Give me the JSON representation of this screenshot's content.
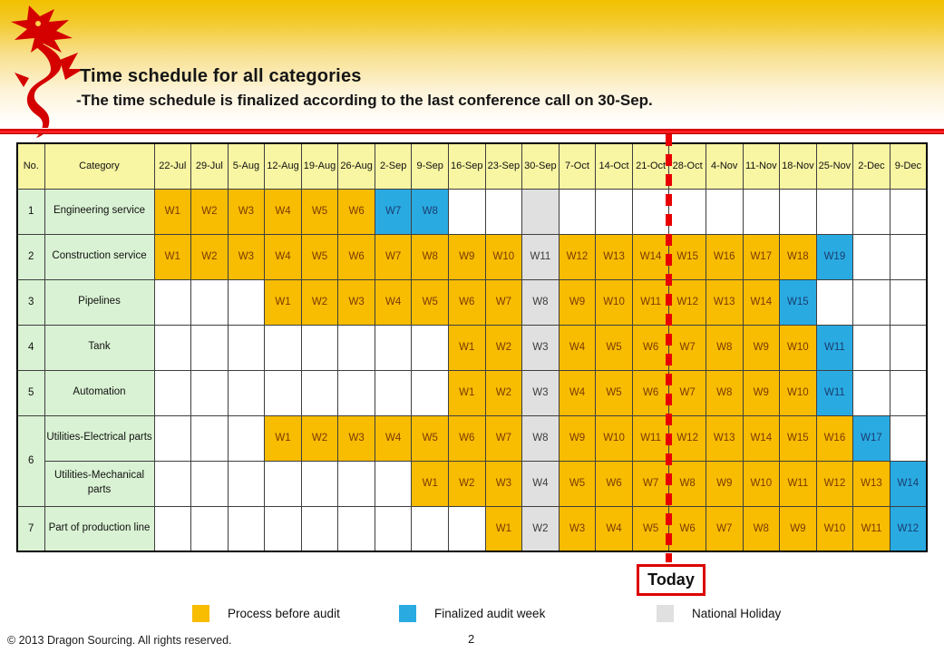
{
  "header": {
    "title": "Time schedule for all categories",
    "subtitle": "-The time schedule is finalized according to the last conference call on 30-Sep."
  },
  "table": {
    "corner_headers": [
      "No.",
      "Category"
    ],
    "date_headers": [
      "22-Jul",
      "29-Jul",
      "5-Aug",
      "12-Aug",
      "19-Aug",
      "26-Aug",
      "2-Sep",
      "9-Sep",
      "16-Sep",
      "23-Sep",
      "30-Sep",
      "7-Oct",
      "14-Oct",
      "21-Oct",
      "28-Oct",
      "4-Nov",
      "11-Nov",
      "18-Nov",
      "25-Nov",
      "2-Dec",
      "9-Dec"
    ],
    "rows": [
      {
        "no": "1",
        "rowspan": 1,
        "category": "Engineering service",
        "cells": [
          {
            "t": "W1",
            "s": "o"
          },
          {
            "t": "W2",
            "s": "o"
          },
          {
            "t": "W3",
            "s": "o"
          },
          {
            "t": "W4",
            "s": "o"
          },
          {
            "t": "W5",
            "s": "o"
          },
          {
            "t": "W6",
            "s": "o"
          },
          {
            "t": "W7",
            "s": "b"
          },
          {
            "t": "W8",
            "s": "b"
          },
          {
            "t": "",
            "s": "e"
          },
          {
            "t": "",
            "s": "e"
          },
          {
            "t": "",
            "s": "g"
          },
          {
            "t": "",
            "s": "e"
          },
          {
            "t": "",
            "s": "e"
          },
          {
            "t": "",
            "s": "e"
          },
          {
            "t": "",
            "s": "e"
          },
          {
            "t": "",
            "s": "e"
          },
          {
            "t": "",
            "s": "e"
          },
          {
            "t": "",
            "s": "e"
          },
          {
            "t": "",
            "s": "e"
          },
          {
            "t": "",
            "s": "e"
          },
          {
            "t": "",
            "s": "e"
          }
        ]
      },
      {
        "no": "2",
        "rowspan": 1,
        "category": "Construction service",
        "cells": [
          {
            "t": "W1",
            "s": "o"
          },
          {
            "t": "W2",
            "s": "o"
          },
          {
            "t": "W3",
            "s": "o"
          },
          {
            "t": "W4",
            "s": "o"
          },
          {
            "t": "W5",
            "s": "o"
          },
          {
            "t": "W6",
            "s": "o"
          },
          {
            "t": "W7",
            "s": "o"
          },
          {
            "t": "W8",
            "s": "o"
          },
          {
            "t": "W9",
            "s": "o"
          },
          {
            "t": "W10",
            "s": "o"
          },
          {
            "t": "W11",
            "s": "g"
          },
          {
            "t": "W12",
            "s": "o"
          },
          {
            "t": "W13",
            "s": "o"
          },
          {
            "t": "W14",
            "s": "o"
          },
          {
            "t": "W15",
            "s": "o"
          },
          {
            "t": "W16",
            "s": "o"
          },
          {
            "t": "W17",
            "s": "o"
          },
          {
            "t": "W18",
            "s": "o"
          },
          {
            "t": "W19",
            "s": "b"
          },
          {
            "t": "",
            "s": "e"
          },
          {
            "t": "",
            "s": "e"
          }
        ]
      },
      {
        "no": "3",
        "rowspan": 1,
        "category": "Pipelines",
        "cells": [
          {
            "t": "",
            "s": "e"
          },
          {
            "t": "",
            "s": "e"
          },
          {
            "t": "",
            "s": "e"
          },
          {
            "t": "W1",
            "s": "o"
          },
          {
            "t": "W2",
            "s": "o"
          },
          {
            "t": "W3",
            "s": "o"
          },
          {
            "t": "W4",
            "s": "o"
          },
          {
            "t": "W5",
            "s": "o"
          },
          {
            "t": "W6",
            "s": "o"
          },
          {
            "t": "W7",
            "s": "o"
          },
          {
            "t": "W8",
            "s": "g"
          },
          {
            "t": "W9",
            "s": "o"
          },
          {
            "t": "W10",
            "s": "o"
          },
          {
            "t": "W11",
            "s": "o"
          },
          {
            "t": "W12",
            "s": "o"
          },
          {
            "t": "W13",
            "s": "o"
          },
          {
            "t": "W14",
            "s": "o"
          },
          {
            "t": "W15",
            "s": "b"
          },
          {
            "t": "",
            "s": "e"
          },
          {
            "t": "",
            "s": "e"
          },
          {
            "t": "",
            "s": "e"
          }
        ]
      },
      {
        "no": "4",
        "rowspan": 1,
        "category": "Tank",
        "cells": [
          {
            "t": "",
            "s": "e"
          },
          {
            "t": "",
            "s": "e"
          },
          {
            "t": "",
            "s": "e"
          },
          {
            "t": "",
            "s": "e"
          },
          {
            "t": "",
            "s": "e"
          },
          {
            "t": "",
            "s": "e"
          },
          {
            "t": "",
            "s": "e"
          },
          {
            "t": "",
            "s": "e"
          },
          {
            "t": "W1",
            "s": "o"
          },
          {
            "t": "W2",
            "s": "o"
          },
          {
            "t": "W3",
            "s": "g"
          },
          {
            "t": "W4",
            "s": "o"
          },
          {
            "t": "W5",
            "s": "o"
          },
          {
            "t": "W6",
            "s": "o"
          },
          {
            "t": "W7",
            "s": "o"
          },
          {
            "t": "W8",
            "s": "o"
          },
          {
            "t": "W9",
            "s": "o"
          },
          {
            "t": "W10",
            "s": "o"
          },
          {
            "t": "W11",
            "s": "b"
          },
          {
            "t": "",
            "s": "e"
          },
          {
            "t": "",
            "s": "e"
          }
        ]
      },
      {
        "no": "5",
        "rowspan": 1,
        "category": "Automation",
        "cells": [
          {
            "t": "",
            "s": "e"
          },
          {
            "t": "",
            "s": "e"
          },
          {
            "t": "",
            "s": "e"
          },
          {
            "t": "",
            "s": "e"
          },
          {
            "t": "",
            "s": "e"
          },
          {
            "t": "",
            "s": "e"
          },
          {
            "t": "",
            "s": "e"
          },
          {
            "t": "",
            "s": "e"
          },
          {
            "t": "W1",
            "s": "o"
          },
          {
            "t": "W2",
            "s": "o"
          },
          {
            "t": "W3",
            "s": "g"
          },
          {
            "t": "W4",
            "s": "o"
          },
          {
            "t": "W5",
            "s": "o"
          },
          {
            "t": "W6",
            "s": "o"
          },
          {
            "t": "W7",
            "s": "o"
          },
          {
            "t": "W8",
            "s": "o"
          },
          {
            "t": "W9",
            "s": "o"
          },
          {
            "t": "W10",
            "s": "o"
          },
          {
            "t": "W11",
            "s": "b"
          },
          {
            "t": "",
            "s": "e"
          },
          {
            "t": "",
            "s": "e"
          }
        ]
      },
      {
        "no": "6",
        "rowspan": 2,
        "category": "Utilities-Electrical parts",
        "cells": [
          {
            "t": "",
            "s": "e"
          },
          {
            "t": "",
            "s": "e"
          },
          {
            "t": "",
            "s": "e"
          },
          {
            "t": "W1",
            "s": "o"
          },
          {
            "t": "W2",
            "s": "o"
          },
          {
            "t": "W3",
            "s": "o"
          },
          {
            "t": "W4",
            "s": "o"
          },
          {
            "t": "W5",
            "s": "o"
          },
          {
            "t": "W6",
            "s": "o"
          },
          {
            "t": "W7",
            "s": "o"
          },
          {
            "t": "W8",
            "s": "g"
          },
          {
            "t": "W9",
            "s": "o"
          },
          {
            "t": "W10",
            "s": "o"
          },
          {
            "t": "W11",
            "s": "o"
          },
          {
            "t": "W12",
            "s": "o"
          },
          {
            "t": "W13",
            "s": "o"
          },
          {
            "t": "W14",
            "s": "o"
          },
          {
            "t": "W15",
            "s": "o"
          },
          {
            "t": "W16",
            "s": "o"
          },
          {
            "t": "W17",
            "s": "b"
          },
          {
            "t": "",
            "s": "e"
          }
        ]
      },
      {
        "no": null,
        "rowspan": 0,
        "category": "Utilities-Mechanical parts",
        "cells": [
          {
            "t": "",
            "s": "e"
          },
          {
            "t": "",
            "s": "e"
          },
          {
            "t": "",
            "s": "e"
          },
          {
            "t": "",
            "s": "e"
          },
          {
            "t": "",
            "s": "e"
          },
          {
            "t": "",
            "s": "e"
          },
          {
            "t": "",
            "s": "e"
          },
          {
            "t": "W1",
            "s": "o"
          },
          {
            "t": "W2",
            "s": "o"
          },
          {
            "t": "W3",
            "s": "o"
          },
          {
            "t": "W4",
            "s": "g"
          },
          {
            "t": "W5",
            "s": "o"
          },
          {
            "t": "W6",
            "s": "o"
          },
          {
            "t": "W7",
            "s": "o"
          },
          {
            "t": "W8",
            "s": "o"
          },
          {
            "t": "W9",
            "s": "o"
          },
          {
            "t": "W10",
            "s": "o"
          },
          {
            "t": "W11",
            "s": "o"
          },
          {
            "t": "W12",
            "s": "o"
          },
          {
            "t": "W13",
            "s": "o"
          },
          {
            "t": "W14",
            "s": "b"
          }
        ]
      },
      {
        "no": "7",
        "rowspan": 1,
        "category": "Part of production line",
        "cells": [
          {
            "t": "",
            "s": "e"
          },
          {
            "t": "",
            "s": "e"
          },
          {
            "t": "",
            "s": "e"
          },
          {
            "t": "",
            "s": "e"
          },
          {
            "t": "",
            "s": "e"
          },
          {
            "t": "",
            "s": "e"
          },
          {
            "t": "",
            "s": "e"
          },
          {
            "t": "",
            "s": "e"
          },
          {
            "t": "",
            "s": "e"
          },
          {
            "t": "W1",
            "s": "o"
          },
          {
            "t": "W2",
            "s": "g"
          },
          {
            "t": "W3",
            "s": "o"
          },
          {
            "t": "W4",
            "s": "o"
          },
          {
            "t": "W5",
            "s": "o"
          },
          {
            "t": "W6",
            "s": "o"
          },
          {
            "t": "W7",
            "s": "o"
          },
          {
            "t": "W8",
            "s": "o"
          },
          {
            "t": "W9",
            "s": "o"
          },
          {
            "t": "W10",
            "s": "o"
          },
          {
            "t": "W11",
            "s": "o"
          },
          {
            "t": "W12",
            "s": "b"
          }
        ]
      }
    ]
  },
  "today_marker": {
    "label": "Today"
  },
  "legend": {
    "items": [
      {
        "name": "process-before-audit",
        "label": "Process before audit",
        "color": "#f8bc00"
      },
      {
        "name": "finalized-audit-week",
        "label": "Finalized audit week",
        "color": "#29abe2"
      },
      {
        "name": "national-holiday",
        "label": "National Holiday",
        "color": "#e0e0e0"
      }
    ]
  },
  "footer": {
    "copyright": "© 2013 Dragon Sourcing. All rights reserved.",
    "page_number": "2"
  },
  "colors": {
    "process_before_audit": "#f8bc00",
    "finalized_audit_week": "#29abe2",
    "national_holiday": "#e0e0e0",
    "header_row": "#f8f5a3",
    "category_cell": "#d9f2d3",
    "today_line": "#e80000",
    "accent_red": "#dd0000"
  }
}
